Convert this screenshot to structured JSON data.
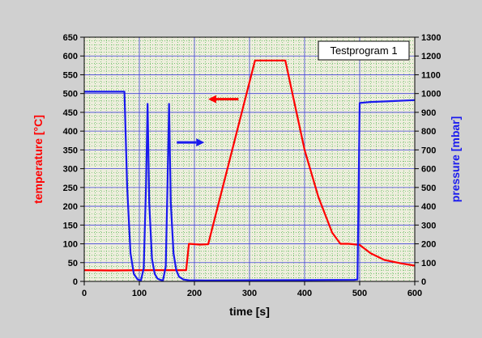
{
  "chart_data": {
    "type": "line",
    "title": "",
    "legend_text": "Testprogram 1",
    "legend_placement": "top-right",
    "xlabel": "time [s]",
    "ylabel_left": "temperature [°C]",
    "ylabel_right": "pressure [mbar]",
    "xlim": [
      0,
      600
    ],
    "ylim_left": [
      0,
      650
    ],
    "ylim_right": [
      0,
      1300
    ],
    "x_ticks": [
      0,
      100,
      200,
      300,
      400,
      500,
      600
    ],
    "y_left_ticks": [
      0,
      50,
      100,
      150,
      200,
      250,
      300,
      350,
      400,
      450,
      500,
      550,
      600,
      650
    ],
    "y_right_ticks": [
      0,
      100,
      200,
      300,
      400,
      500,
      600,
      700,
      800,
      900,
      1000,
      1100,
      1200,
      1300
    ],
    "grid": true,
    "colors": {
      "background": "#d0d0d0",
      "plot_area": "#eeeedd",
      "major_grid": "#4444dd",
      "minor_grid": "#33aa33",
      "temperature": "#ff0000",
      "pressure": "#1a1aee",
      "axis": "#000000"
    },
    "series": [
      {
        "axis": "left",
        "color": "#ff0000",
        "points": [
          [
            0,
            30
          ],
          [
            50,
            29
          ],
          [
            100,
            30
          ],
          [
            150,
            30
          ],
          [
            185,
            30
          ],
          [
            190,
            100
          ],
          [
            210,
            98
          ],
          [
            225,
            99
          ],
          [
            310,
            588
          ],
          [
            365,
            588
          ],
          [
            400,
            350
          ],
          [
            425,
            225
          ],
          [
            450,
            130
          ],
          [
            465,
            100
          ],
          [
            480,
            100
          ],
          [
            500,
            97
          ],
          [
            520,
            75
          ],
          [
            545,
            57
          ],
          [
            575,
            48
          ],
          [
            600,
            42
          ]
        ]
      },
      {
        "axis": "right",
        "color": "#1a1aee",
        "points": [
          [
            0,
            1010
          ],
          [
            73,
            1010
          ],
          [
            78,
            500
          ],
          [
            84,
            150
          ],
          [
            90,
            40
          ],
          [
            97,
            10
          ],
          [
            103,
            5
          ],
          [
            108,
            70
          ],
          [
            112,
            500
          ],
          [
            115,
            945
          ],
          [
            118,
            420
          ],
          [
            123,
            120
          ],
          [
            128,
            40
          ],
          [
            133,
            15
          ],
          [
            138,
            8
          ],
          [
            143,
            5
          ],
          [
            148,
            80
          ],
          [
            151,
            500
          ],
          [
            154,
            945
          ],
          [
            157,
            420
          ],
          [
            162,
            150
          ],
          [
            167,
            60
          ],
          [
            172,
            25
          ],
          [
            180,
            10
          ],
          [
            190,
            6
          ],
          [
            220,
            5
          ],
          [
            300,
            6
          ],
          [
            400,
            7
          ],
          [
            490,
            8
          ],
          [
            496,
            10
          ],
          [
            500,
            950
          ],
          [
            520,
            955
          ],
          [
            560,
            960
          ],
          [
            600,
            965
          ]
        ]
      }
    ],
    "annotations": [
      {
        "type": "arrow",
        "direction": "left",
        "color": "#ff0000",
        "x_from": 280,
        "x_to": 225,
        "y_left": 485
      },
      {
        "type": "arrow",
        "direction": "right",
        "color": "#1a1aee",
        "x_from": 168,
        "x_to": 218,
        "y_left": 370
      }
    ]
  }
}
